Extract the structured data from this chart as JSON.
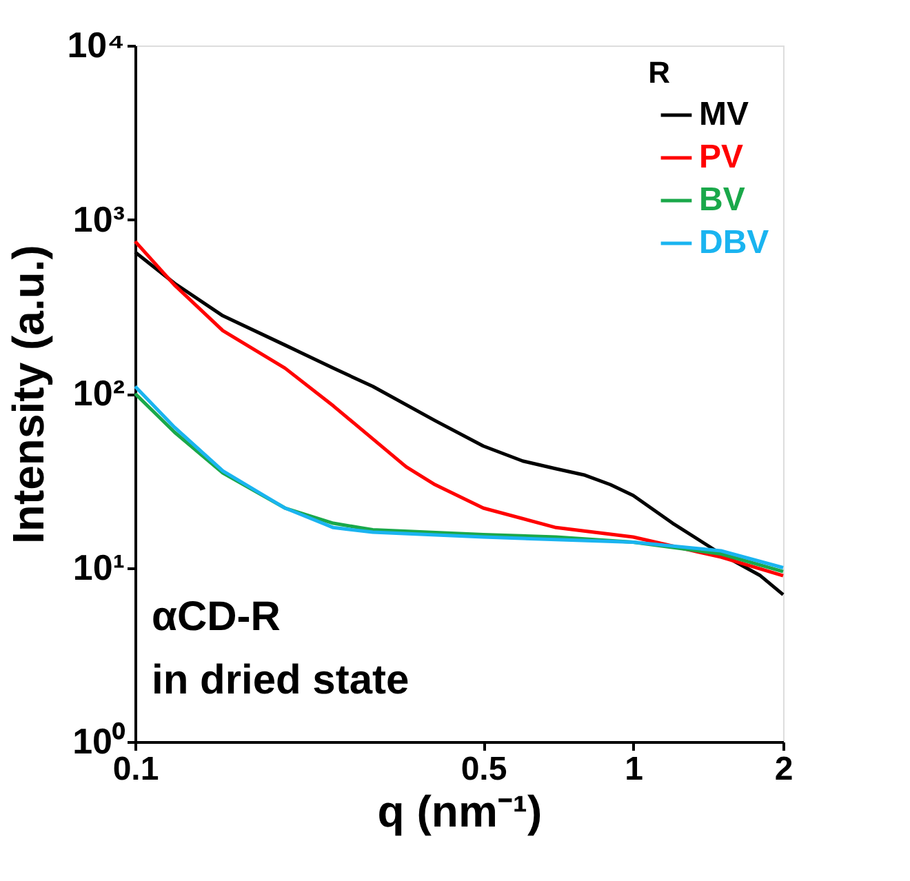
{
  "chart_data": {
    "type": "line",
    "xlabel": "q (nm⁻¹)",
    "ylabel": "Intensity (a.u.)",
    "legend_title": "R",
    "legend": "top right",
    "log": "xy",
    "grid": false,
    "line_style": "solid",
    "marker": "none",
    "xlim": [
      0.1,
      2
    ],
    "xticks": [
      0.1,
      0.5,
      1,
      2
    ],
    "ylim": [
      1,
      10000
    ],
    "yticks": [
      {
        "value": 1,
        "label": "10⁰"
      },
      {
        "value": 10,
        "label": "10¹"
      },
      {
        "value": 100,
        "label": "10²"
      },
      {
        "value": 1000,
        "label": "10³"
      },
      {
        "value": 10000,
        "label": "10⁴"
      }
    ],
    "annotations": [
      "αCD-R",
      "in dried state"
    ],
    "series": [
      {
        "name": "MV",
        "color": "#000000",
        "x": [
          0.1,
          0.12,
          0.15,
          0.2,
          0.25,
          0.3,
          0.4,
          0.5,
          0.6,
          0.7,
          0.8,
          0.9,
          1.0,
          1.2,
          1.5,
          1.8,
          2.0
        ],
        "values": [
          650,
          430,
          280,
          190,
          140,
          110,
          70,
          50,
          41,
          37,
          34,
          30,
          26,
          18,
          12,
          9,
          7
        ]
      },
      {
        "name": "PV",
        "color": "#ff0000",
        "x": [
          0.1,
          0.12,
          0.15,
          0.2,
          0.25,
          0.3,
          0.35,
          0.4,
          0.5,
          0.7,
          1.0,
          1.5,
          2.0
        ],
        "values": [
          750,
          420,
          230,
          140,
          85,
          55,
          38,
          30,
          22,
          17,
          15,
          11.5,
          9
        ]
      },
      {
        "name": "BV",
        "color": "#1aa84a",
        "x": [
          0.1,
          0.12,
          0.15,
          0.2,
          0.25,
          0.3,
          0.5,
          0.7,
          1.0,
          1.5,
          2.0
        ],
        "values": [
          100,
          60,
          35,
          22,
          18,
          16.5,
          15.5,
          15,
          14,
          12,
          9.5
        ]
      },
      {
        "name": "DBV",
        "color": "#1ab4f0",
        "x": [
          0.1,
          0.12,
          0.15,
          0.2,
          0.25,
          0.3,
          0.5,
          0.7,
          1.0,
          1.5,
          2.0
        ],
        "values": [
          110,
          64,
          36,
          22,
          17,
          16,
          15,
          14.5,
          14,
          12.5,
          10
        ]
      }
    ]
  }
}
